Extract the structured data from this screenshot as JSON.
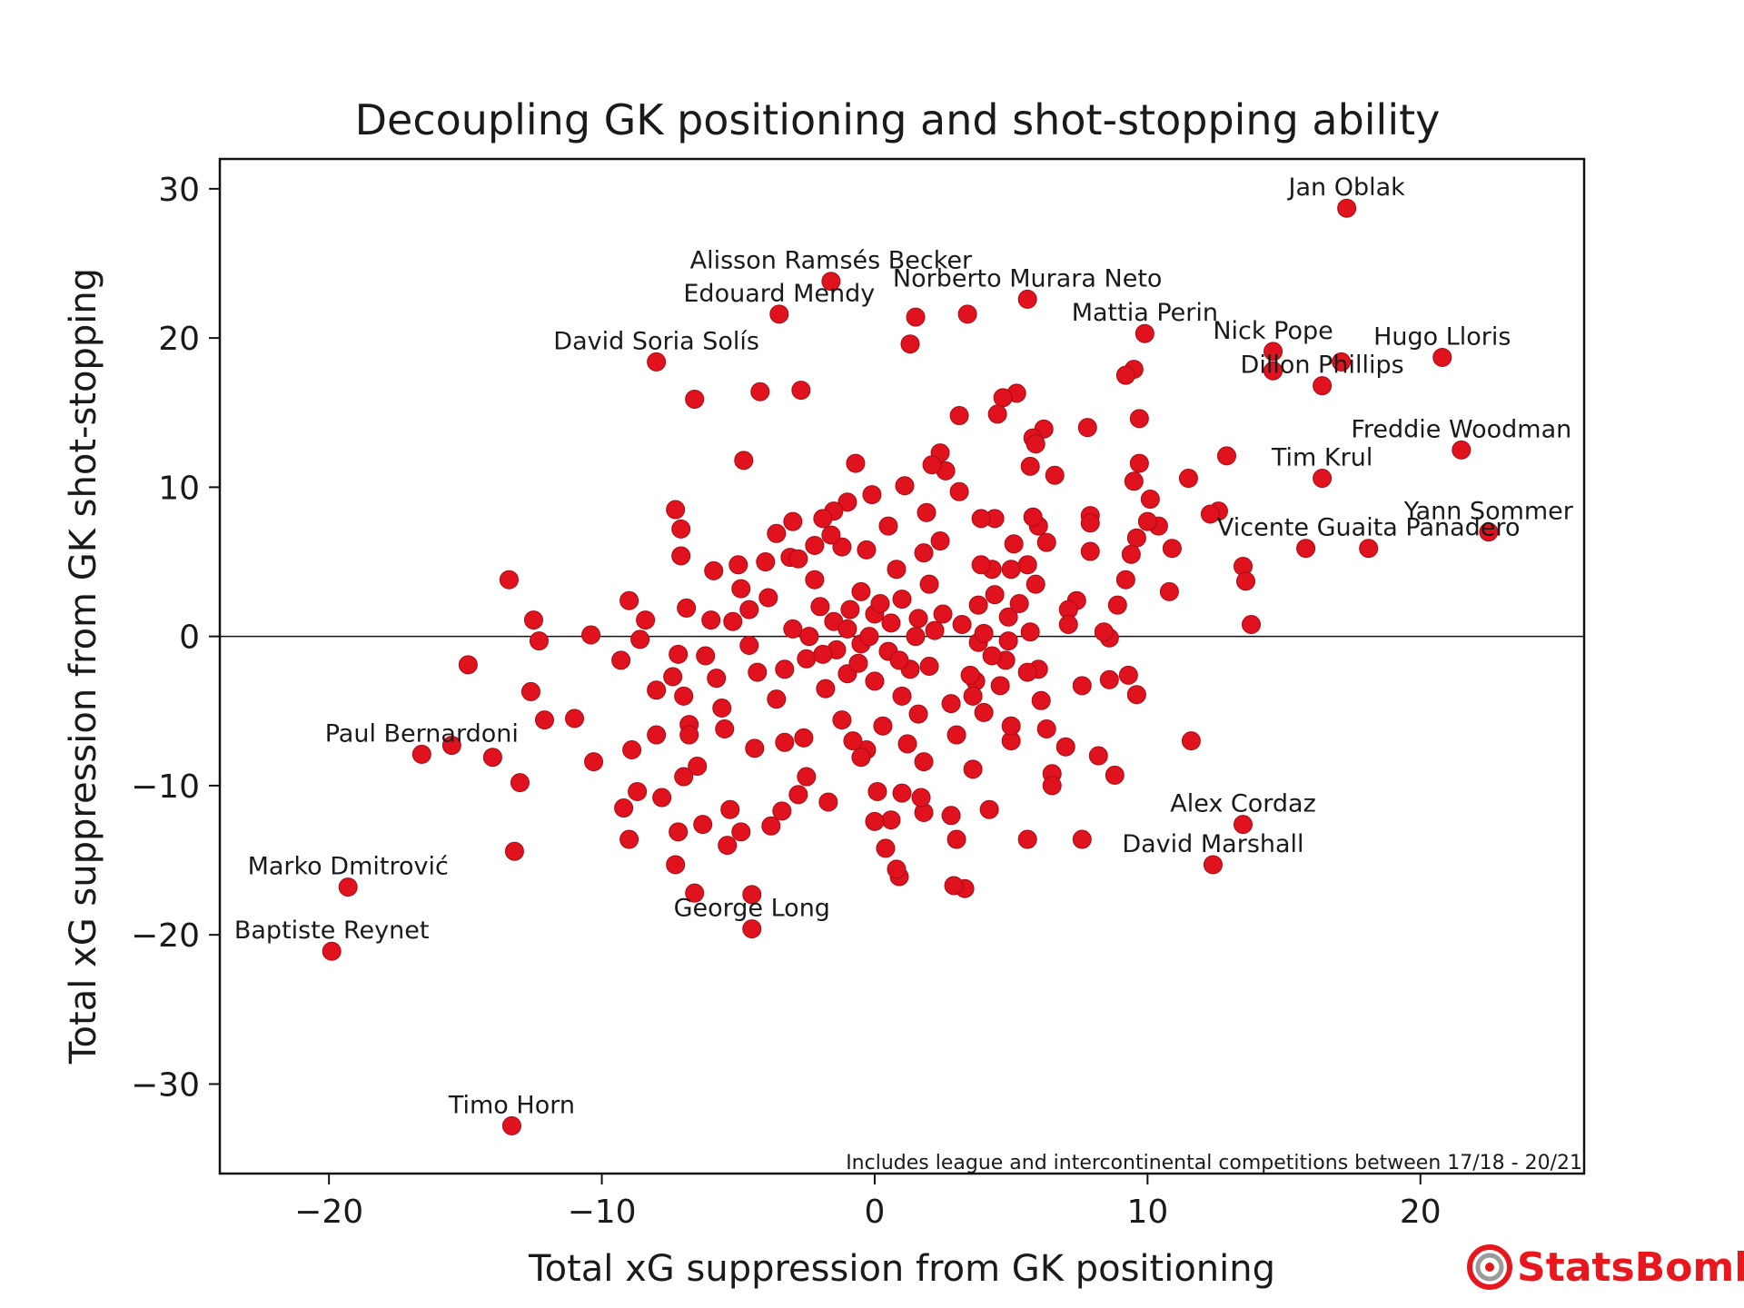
{
  "chart_data": {
    "type": "scatter",
    "title": "Decoupling GK positioning and shot-stopping ability",
    "xlabel": "Total xG suppression from GK positioning",
    "ylabel": "Total xG suppression from GK shot-stopping",
    "xlim": [
      -24,
      26
    ],
    "ylim": [
      -36,
      32
    ],
    "xticks": [
      -20,
      -10,
      0,
      10,
      20
    ],
    "xtick_labels": [
      "−20",
      "−10",
      "0",
      "10",
      "20"
    ],
    "yticks": [
      -30,
      -20,
      -10,
      0,
      10,
      20,
      30
    ],
    "ytick_labels": [
      "−30",
      "−20",
      "−10",
      "0",
      "10",
      "20",
      "30"
    ],
    "grid": false,
    "reference_line_y": 0,
    "marker_color": "#e0121d",
    "marker_edge_color": "#a80c15",
    "footnote": "Includes league and intercontinental competitions between 17/18 - 20/21",
    "labeled_points": [
      {
        "name": "Jan Oblak",
        "x": 17.3,
        "y": 28.7
      },
      {
        "name": "Alisson Ramsés Becker",
        "x": -1.6,
        "y": 23.8
      },
      {
        "name": "Norberto Murara Neto",
        "x": 5.6,
        "y": 22.6
      },
      {
        "name": "Edouard Mendy",
        "x": -3.5,
        "y": 21.6
      },
      {
        "name": "Mattia Perin",
        "x": 9.9,
        "y": 20.3
      },
      {
        "name": "David Soria Solís",
        "x": -8.0,
        "y": 18.4
      },
      {
        "name": "Nick Pope",
        "x": 14.6,
        "y": 19.1
      },
      {
        "name": "Hugo Lloris",
        "x": 20.8,
        "y": 18.7
      },
      {
        "name": "Dillon Phillips",
        "x": 16.4,
        "y": 16.8
      },
      {
        "name": "Freddie Woodman",
        "x": 21.5,
        "y": 12.5
      },
      {
        "name": "Tim Krul",
        "x": 16.4,
        "y": 10.6
      },
      {
        "name": "Yann Sommer",
        "x": 22.5,
        "y": 7.0
      },
      {
        "name": "Vicente Guaita Panadero",
        "x": 18.1,
        "y": 5.9
      },
      {
        "name": "Paul Bernardoni",
        "x": -16.6,
        "y": -7.9
      },
      {
        "name": "Alex Cordaz",
        "x": 13.5,
        "y": -12.6
      },
      {
        "name": "David Marshall",
        "x": 12.4,
        "y": -15.3
      },
      {
        "name": "Marko Dmitrović",
        "x": -19.3,
        "y": -16.8
      },
      {
        "name": "George Long",
        "x": -4.5,
        "y": -19.6
      },
      {
        "name": "Baptiste Reynet",
        "x": -19.9,
        "y": -21.1
      },
      {
        "name": "Timo Horn",
        "x": -13.3,
        "y": -32.8
      }
    ],
    "points": [
      [
        15.8,
        5.9
      ],
      [
        14.6,
        17.8
      ],
      [
        17.1,
        18.4
      ],
      [
        13.5,
        4.7
      ],
      [
        13.6,
        3.7
      ],
      [
        13.8,
        0.8
      ],
      [
        12.9,
        12.1
      ],
      [
        12.6,
        8.4
      ],
      [
        12.3,
        8.2
      ],
      [
        11.5,
        10.6
      ],
      [
        10.9,
        5.9
      ],
      [
        10.8,
        3.0
      ],
      [
        11.6,
        -7.0
      ],
      [
        10.4,
        7.4
      ],
      [
        10.1,
        9.2
      ],
      [
        10.0,
        7.7
      ],
      [
        9.7,
        14.6
      ],
      [
        9.5,
        17.9
      ],
      [
        9.2,
        17.5
      ],
      [
        9.7,
        11.6
      ],
      [
        9.5,
        10.4
      ],
      [
        9.6,
        6.6
      ],
      [
        9.4,
        5.5
      ],
      [
        9.2,
        3.8
      ],
      [
        9.6,
        -3.9
      ],
      [
        9.3,
        -2.6
      ],
      [
        8.9,
        2.1
      ],
      [
        8.6,
        -0.1
      ],
      [
        8.4,
        0.3
      ],
      [
        8.6,
        -2.9
      ],
      [
        8.8,
        -9.3
      ],
      [
        8.2,
        -8.0
      ],
      [
        7.8,
        14.0
      ],
      [
        7.9,
        8.1
      ],
      [
        7.9,
        7.6
      ],
      [
        7.9,
        5.7
      ],
      [
        7.6,
        -3.3
      ],
      [
        7.6,
        -13.6
      ],
      [
        7.4,
        2.4
      ],
      [
        7.1,
        1.8
      ],
      [
        7.0,
        -7.4
      ],
      [
        6.6,
        10.8
      ],
      [
        6.5,
        -9.2
      ],
      [
        6.5,
        -10.0
      ],
      [
        6.3,
        -6.2
      ],
      [
        6.3,
        6.3
      ],
      [
        6.2,
        13.9
      ],
      [
        6.0,
        7.4
      ],
      [
        6.0,
        -2.2
      ],
      [
        5.9,
        3.5
      ],
      [
        5.7,
        11.4
      ],
      [
        5.8,
        13.3
      ],
      [
        5.9,
        12.9
      ],
      [
        5.8,
        8.0
      ],
      [
        5.6,
        4.8
      ],
      [
        5.7,
        0.3
      ],
      [
        5.6,
        -2.4
      ],
      [
        5.6,
        -13.6
      ],
      [
        5.2,
        16.3
      ],
      [
        5.1,
        6.2
      ],
      [
        5.0,
        4.5
      ],
      [
        5.0,
        -7.0
      ],
      [
        4.9,
        1.3
      ],
      [
        4.9,
        -0.3
      ],
      [
        4.8,
        -1.6
      ],
      [
        4.7,
        16.0
      ],
      [
        4.5,
        14.9
      ],
      [
        4.4,
        7.9
      ],
      [
        4.3,
        4.5
      ],
      [
        4.3,
        -1.3
      ],
      [
        4.2,
        -11.6
      ],
      [
        4.0,
        -5.1
      ],
      [
        3.9,
        7.9
      ],
      [
        3.9,
        4.8
      ],
      [
        3.8,
        2.1
      ],
      [
        3.8,
        -0.4
      ],
      [
        3.7,
        -3.0
      ],
      [
        3.6,
        -8.9
      ],
      [
        3.4,
        21.6
      ],
      [
        3.3,
        -16.9
      ],
      [
        3.1,
        14.8
      ],
      [
        3.1,
        9.7
      ],
      [
        3.0,
        -13.6
      ],
      [
        2.9,
        -16.7
      ],
      [
        2.8,
        -12.0
      ],
      [
        2.6,
        11.1
      ],
      [
        2.4,
        12.3
      ],
      [
        2.1,
        11.5
      ],
      [
        1.9,
        8.3
      ],
      [
        1.8,
        -8.4
      ],
      [
        1.8,
        -11.8
      ],
      [
        1.7,
        -10.8
      ],
      [
        1.5,
        21.4
      ],
      [
        1.3,
        19.6
      ],
      [
        1.1,
        10.1
      ],
      [
        1.0,
        -10.5
      ],
      [
        0.9,
        -16.1
      ],
      [
        0.8,
        -15.6
      ],
      [
        0.6,
        -12.3
      ],
      [
        0.4,
        -14.2
      ],
      [
        0.1,
        -10.4
      ],
      [
        0.0,
        -12.4
      ],
      [
        -0.1,
        9.5
      ],
      [
        -0.3,
        -7.6
      ],
      [
        -0.5,
        -8.1
      ],
      [
        -0.7,
        11.6
      ],
      [
        -1.0,
        9.0
      ],
      [
        -1.2,
        6.0
      ],
      [
        -1.5,
        8.4
      ],
      [
        -1.7,
        -11.1
      ],
      [
        -1.9,
        7.9
      ],
      [
        -2.2,
        6.1
      ],
      [
        -2.5,
        -9.4
      ],
      [
        -2.7,
        16.5
      ],
      [
        -2.8,
        -10.6
      ],
      [
        -3.0,
        7.7
      ],
      [
        -3.1,
        5.3
      ],
      [
        -3.3,
        -7.1
      ],
      [
        -3.4,
        -11.7
      ],
      [
        -3.6,
        6.9
      ],
      [
        -3.8,
        -12.7
      ],
      [
        -4.0,
        5.0
      ],
      [
        -4.2,
        16.4
      ],
      [
        -4.4,
        -7.5
      ],
      [
        -4.5,
        -17.3
      ],
      [
        -4.6,
        1.8
      ],
      [
        -4.8,
        11.8
      ],
      [
        -4.9,
        -13.1
      ],
      [
        -5.0,
        4.8
      ],
      [
        -5.3,
        -11.6
      ],
      [
        -5.4,
        -14.0
      ],
      [
        -5.6,
        -4.8
      ],
      [
        -6.0,
        1.1
      ],
      [
        -6.3,
        -12.6
      ],
      [
        -6.5,
        -8.7
      ],
      [
        -6.6,
        -17.2
      ],
      [
        -6.6,
        15.9
      ],
      [
        -6.8,
        -5.9
      ],
      [
        -7.0,
        -4.0
      ],
      [
        -7.0,
        -9.4
      ],
      [
        -7.2,
        -13.1
      ],
      [
        -7.3,
        -15.3
      ],
      [
        -7.3,
        8.5
      ],
      [
        -7.1,
        7.2
      ],
      [
        -7.1,
        5.4
      ],
      [
        -6.9,
        1.9
      ],
      [
        -7.2,
        -1.2
      ],
      [
        -7.8,
        -10.8
      ],
      [
        -8.0,
        -3.6
      ],
      [
        -8.0,
        -6.6
      ],
      [
        -8.4,
        1.1
      ],
      [
        -8.6,
        -0.2
      ],
      [
        -8.7,
        -10.4
      ],
      [
        -8.9,
        -7.6
      ],
      [
        -9.0,
        -13.6
      ],
      [
        -9.2,
        -11.5
      ],
      [
        -9.3,
        -1.6
      ],
      [
        -9.0,
        2.4
      ],
      [
        -10.3,
        -8.4
      ],
      [
        -10.4,
        0.1
      ],
      [
        -11.0,
        -5.5
      ],
      [
        -12.1,
        -5.6
      ],
      [
        -12.6,
        -3.7
      ],
      [
        -12.3,
        -0.3
      ],
      [
        -12.5,
        1.1
      ],
      [
        -13.0,
        -9.8
      ],
      [
        -13.4,
        3.8
      ],
      [
        -13.2,
        -14.4
      ],
      [
        -14.0,
        -8.1
      ],
      [
        -14.9,
        -1.9
      ],
      [
        -15.5,
        -7.3
      ],
      [
        -2.0,
        2.0
      ],
      [
        -1.5,
        1.0
      ],
      [
        -1.0,
        0.5
      ],
      [
        -0.5,
        -0.5
      ],
      [
        0.0,
        1.5
      ],
      [
        0.5,
        -1.0
      ],
      [
        1.0,
        2.5
      ],
      [
        1.5,
        0.0
      ],
      [
        2.0,
        -2.0
      ],
      [
        2.5,
        1.5
      ],
      [
        -2.5,
        -1.5
      ],
      [
        -3.0,
        0.5
      ],
      [
        -1.0,
        -2.5
      ],
      [
        0.0,
        -3.0
      ],
      [
        1.0,
        -4.0
      ],
      [
        2.0,
        3.5
      ],
      [
        -0.5,
        3.0
      ],
      [
        -1.8,
        -3.5
      ],
      [
        0.8,
        4.5
      ],
      [
        -2.2,
        3.8
      ],
      [
        1.6,
        -5.2
      ],
      [
        2.8,
        -4.5
      ],
      [
        -3.6,
        -4.2
      ],
      [
        -4.3,
        -2.4
      ],
      [
        -3.9,
        2.6
      ],
      [
        3.2,
        0.8
      ],
      [
        3.5,
        -2.6
      ],
      [
        -0.3,
        5.8
      ],
      [
        0.3,
        -6.0
      ],
      [
        -1.2,
        -5.6
      ],
      [
        1.8,
        5.6
      ],
      [
        2.4,
        6.4
      ],
      [
        -2.8,
        5.2
      ],
      [
        -4.6,
        -0.6
      ],
      [
        -5.2,
        1.0
      ],
      [
        4.0,
        0.2
      ],
      [
        4.4,
        2.8
      ],
      [
        -0.8,
        -7.0
      ],
      [
        1.2,
        -7.2
      ],
      [
        -5.8,
        -2.8
      ],
      [
        -5.5,
        -6.2
      ],
      [
        3.0,
        -6.6
      ],
      [
        -1.6,
        6.8
      ],
      [
        0.5,
        7.4
      ],
      [
        -2.6,
        -6.8
      ],
      [
        -0.2,
        0.0
      ],
      [
        0.6,
        0.9
      ],
      [
        -0.9,
        1.8
      ],
      [
        1.3,
        -2.2
      ],
      [
        -1.4,
        -0.9
      ],
      [
        2.2,
        0.4
      ],
      [
        -2.4,
        0.0
      ],
      [
        0.2,
        2.2
      ],
      [
        -0.6,
        -1.8
      ],
      [
        1.6,
        1.2
      ],
      [
        -1.9,
        -1.2
      ],
      [
        0.9,
        -1.6
      ],
      [
        -3.3,
        -2.2
      ],
      [
        3.6,
        -4.0
      ],
      [
        -4.9,
        3.2
      ],
      [
        4.6,
        -3.3
      ],
      [
        -6.2,
        -1.3
      ],
      [
        5.3,
        2.2
      ],
      [
        -5.9,
        4.4
      ],
      [
        6.1,
        -4.3
      ],
      [
        -7.4,
        -2.7
      ],
      [
        7.1,
        0.8
      ],
      [
        -6.8,
        -6.6
      ],
      [
        5.0,
        -6.0
      ]
    ]
  },
  "brand": {
    "name": "StatsBomb",
    "color": "#e8171e",
    "icon": "statsbomb-target-icon"
  }
}
